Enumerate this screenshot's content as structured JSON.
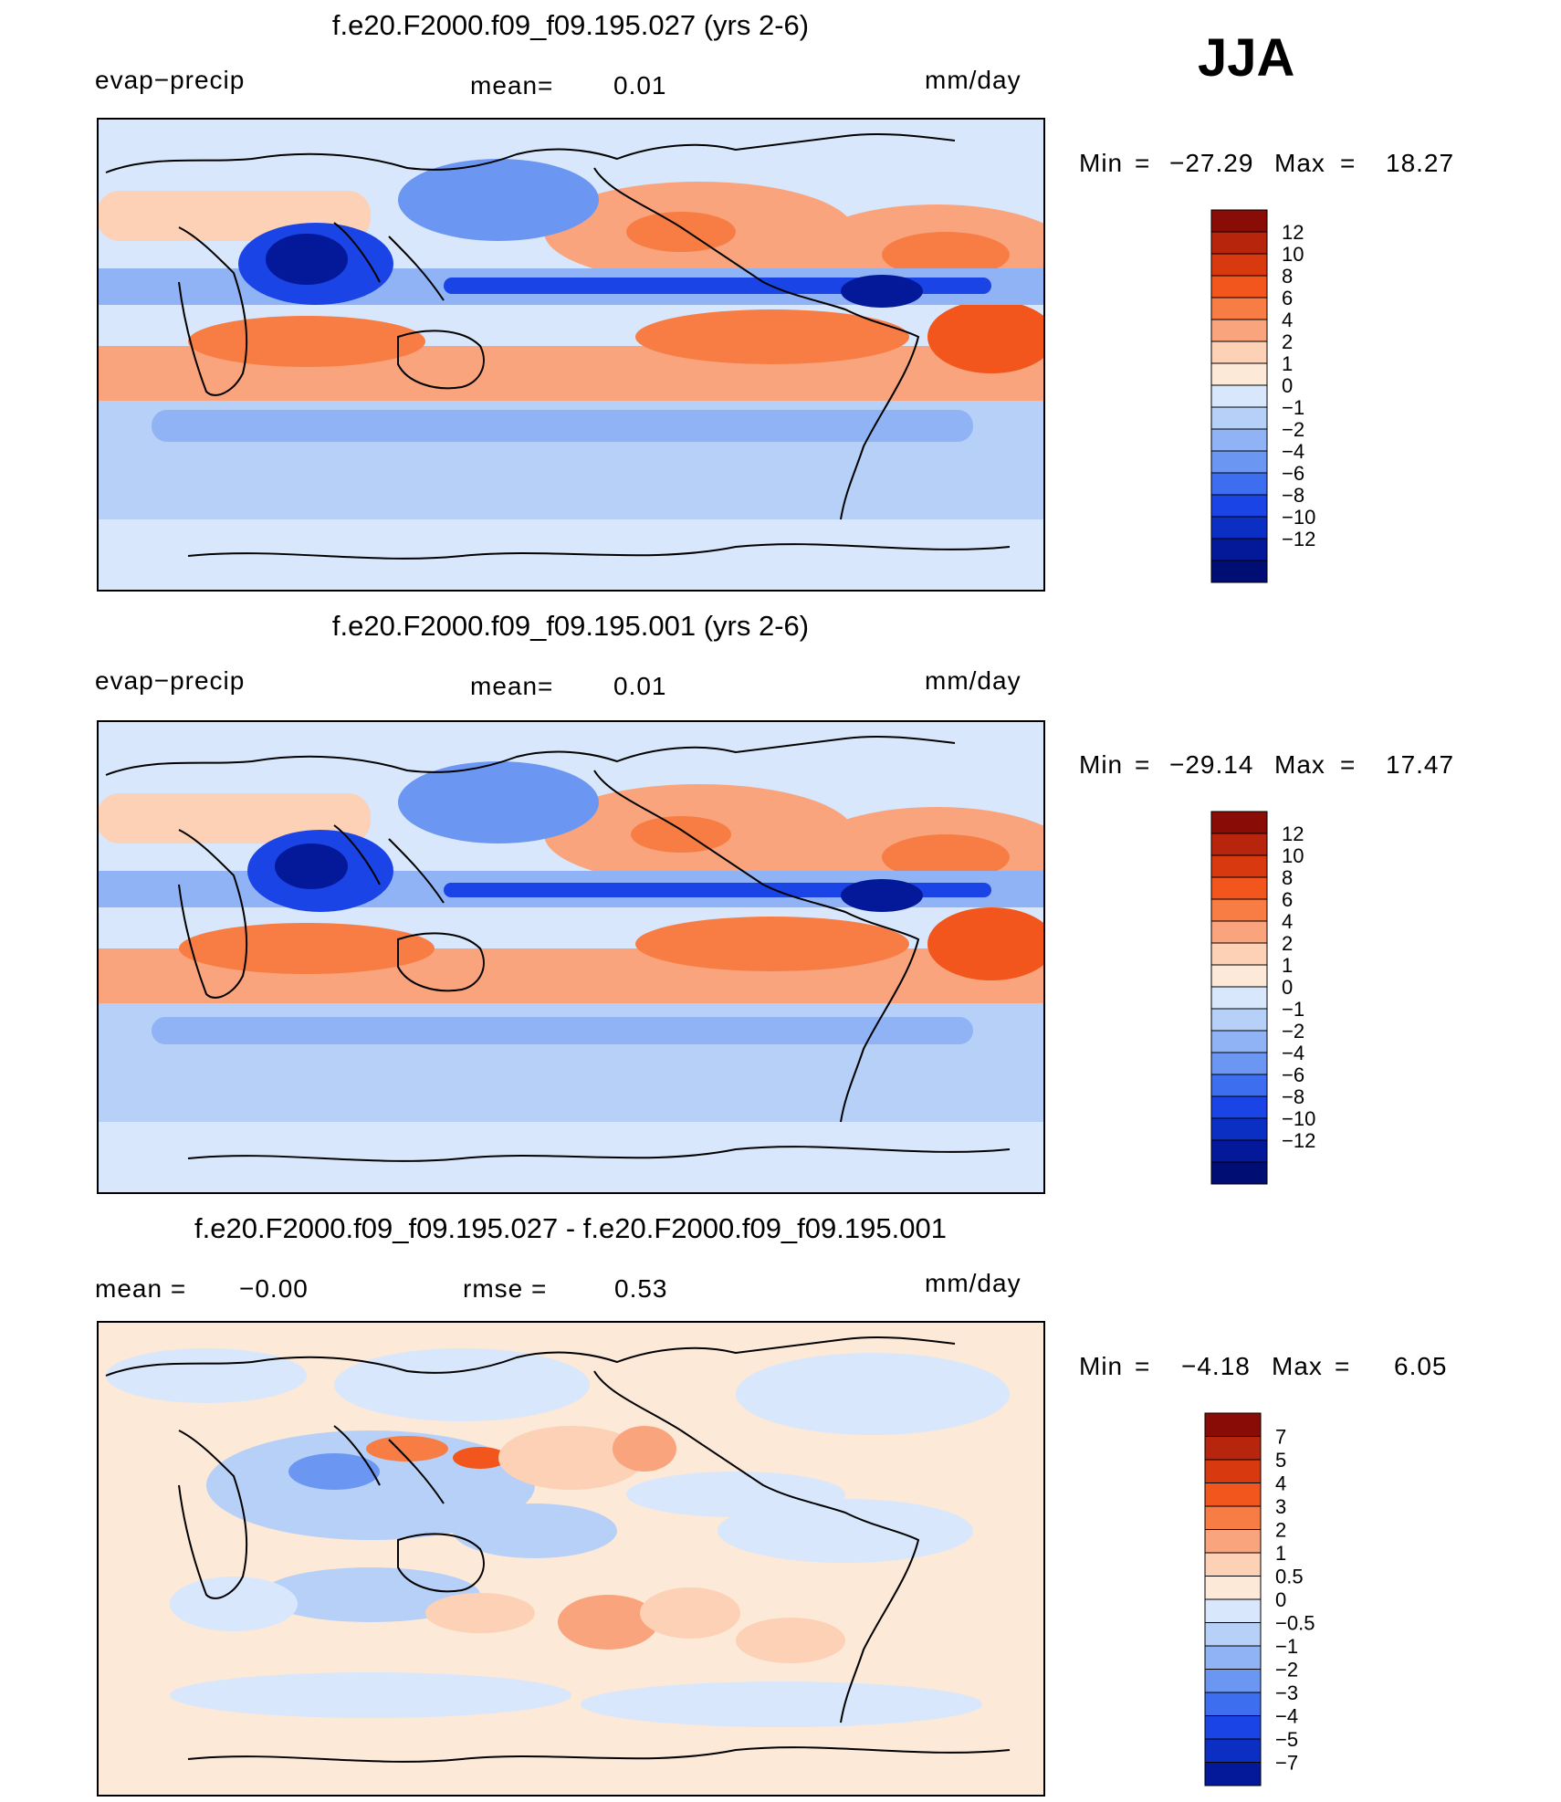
{
  "season": "JJA",
  "colors": {
    "colorbar_abs": [
      "#8a0c07",
      "#b8250d",
      "#d9390f",
      "#f2561c",
      "#f77d45",
      "#f9a47d",
      "#fcd1b6",
      "#fde9d8",
      "#d8e7fb",
      "#b6d0f8",
      "#8fb3f5",
      "#6b97f2",
      "#3d6ef0",
      "#1a44e6",
      "#0a2fc2",
      "#04199a",
      "#000d72"
    ],
    "colorbar_diff": [
      "#8a0c07",
      "#b8250d",
      "#d9390f",
      "#f2561c",
      "#f77d45",
      "#f9a47d",
      "#fcd1b6",
      "#fde9d8",
      "#d8e7fb",
      "#b6d0f8",
      "#8fb3f5",
      "#6b97f2",
      "#3d6ef0",
      "#1a44e6",
      "#0a2fc2",
      "#04199a"
    ]
  },
  "chart_data": [
    {
      "type": "heatmap",
      "title": "f.e20.F2000.f09_f09.195.027 (yrs 2-6)",
      "left_label": "evap−precip",
      "mean_label": "mean=",
      "mean_value": "0.01",
      "units": "mm/day",
      "min_label": "Min",
      "min_value": "−27.29",
      "max_label": "Max",
      "max_value": "18.27",
      "colorbar_levels": [
        "12",
        "10",
        "8",
        "6",
        "4",
        "2",
        "1",
        "0",
        "−1",
        "−2",
        "−4",
        "−6",
        "−8",
        "−10",
        "−12"
      ]
    },
    {
      "type": "heatmap",
      "title": "f.e20.F2000.f09_f09.195.001 (yrs 2-6)",
      "left_label": "evap−precip",
      "mean_label": "mean=",
      "mean_value": "0.01",
      "units": "mm/day",
      "min_label": "Min",
      "min_value": "−29.14",
      "max_label": "Max",
      "max_value": "17.47",
      "colorbar_levels": [
        "12",
        "10",
        "8",
        "6",
        "4",
        "2",
        "1",
        "0",
        "−1",
        "−2",
        "−4",
        "−6",
        "−8",
        "−10",
        "−12"
      ]
    },
    {
      "type": "heatmap",
      "title": "f.e20.F2000.f09_f09.195.027 - f.e20.F2000.f09_f09.195.001",
      "mean_label": "mean  =",
      "mean_value": "−0.00",
      "rmse_label": "rmse  =",
      "rmse_value": "0.53",
      "units": "mm/day",
      "min_label": "Min",
      "min_value": "−4.18",
      "max_label": "Max",
      "max_value": "6.05",
      "colorbar_levels": [
        "7",
        "5",
        "4",
        "3",
        "2",
        "1",
        "0.5",
        "0",
        "−0.5",
        "−1",
        "−2",
        "−3",
        "−4",
        "−5",
        "−7"
      ]
    }
  ]
}
